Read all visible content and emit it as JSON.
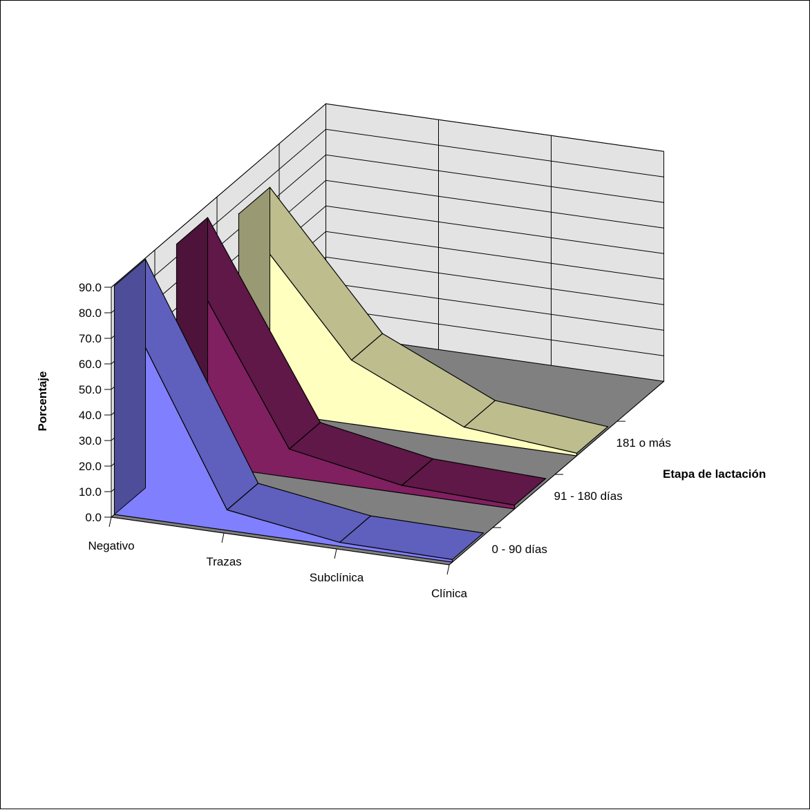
{
  "chart_data": {
    "type": "area",
    "title": "",
    "ylabel": "Porcentaje",
    "zlabel": "Etapa de lactación",
    "xlabel": "",
    "categories": [
      "Negativo",
      "Trazas",
      "Subclínica",
      "Clínica"
    ],
    "ylim": [
      0,
      90
    ],
    "yticks": [
      "0.0",
      "10.0",
      "20.0",
      "30.0",
      "40.0",
      "50.0",
      "60.0",
      "70.0",
      "80.0",
      "90.0"
    ],
    "series": [
      {
        "name": "0 - 90 días",
        "values": [
          89.5,
          8.0,
          1.5,
          1.0
        ],
        "color": "#8080ff"
      },
      {
        "name": "91 - 180 días",
        "values": [
          85.0,
          11.0,
          3.0,
          1.5
        ],
        "color": "#802060"
      },
      {
        "name": "181 o más",
        "values": [
          76.0,
          25.0,
          5.0,
          1.0
        ],
        "color": "#ffffc0"
      }
    ],
    "grid": true
  }
}
